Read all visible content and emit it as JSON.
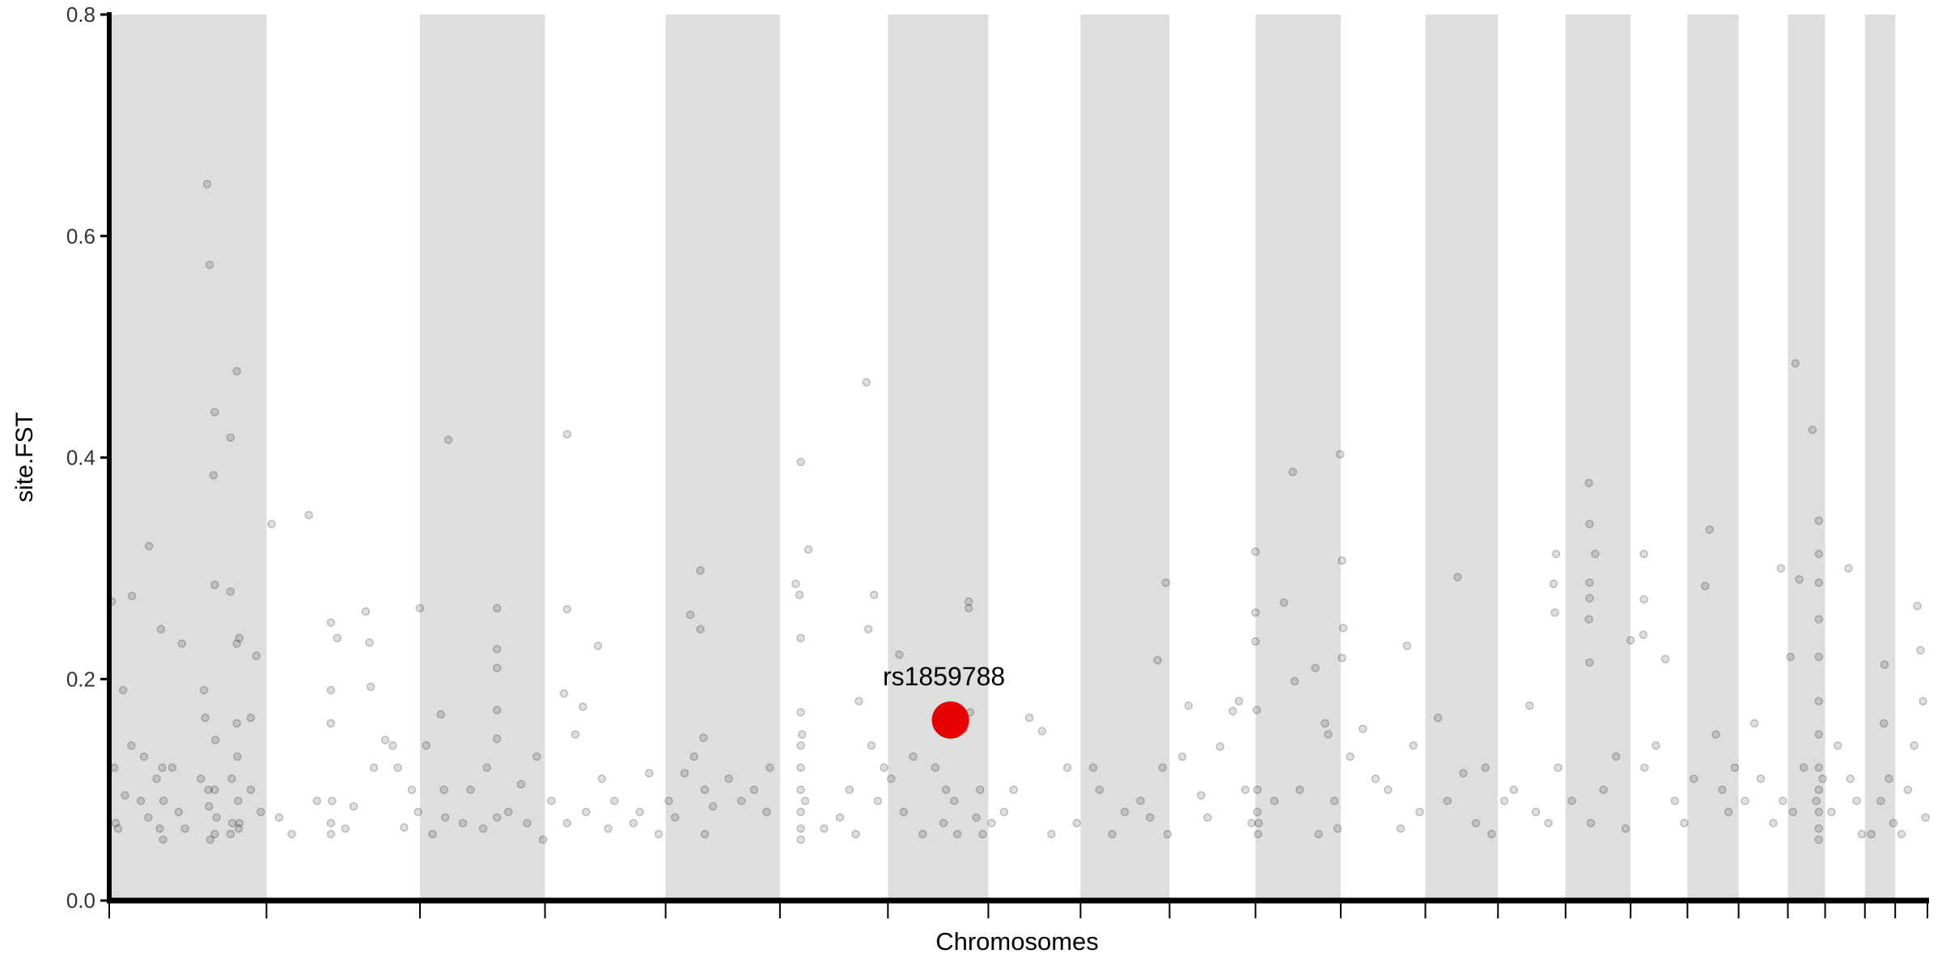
{
  "chart_data": {
    "type": "scatter",
    "subtype": "manhattan",
    "title": "",
    "xlabel": "Chromosomes",
    "ylabel": "site.FST",
    "ylim": [
      0,
      0.8
    ],
    "yticks": [
      "0.0",
      "0.2",
      "0.4",
      "0.6",
      "0.8"
    ],
    "x_tick_labels_shown": false,
    "grid": false,
    "band_color": "#dedede",
    "point_color": "#000000",
    "highlight_color": "#e60000",
    "chromosomes": [
      {
        "chr": 1,
        "length_mb": 249
      },
      {
        "chr": 2,
        "length_mb": 243
      },
      {
        "chr": 3,
        "length_mb": 198
      },
      {
        "chr": 4,
        "length_mb": 191
      },
      {
        "chr": 5,
        "length_mb": 181
      },
      {
        "chr": 6,
        "length_mb": 171
      },
      {
        "chr": 7,
        "length_mb": 159
      },
      {
        "chr": 8,
        "length_mb": 146
      },
      {
        "chr": 9,
        "length_mb": 141
      },
      {
        "chr": 10,
        "length_mb": 136
      },
      {
        "chr": 11,
        "length_mb": 135
      },
      {
        "chr": 12,
        "length_mb": 134
      },
      {
        "chr": 13,
        "length_mb": 115
      },
      {
        "chr": 14,
        "length_mb": 107
      },
      {
        "chr": 15,
        "length_mb": 103
      },
      {
        "chr": 16,
        "length_mb": 90
      },
      {
        "chr": 17,
        "length_mb": 81
      },
      {
        "chr": 18,
        "length_mb": 78
      },
      {
        "chr": 19,
        "length_mb": 59
      },
      {
        "chr": 20,
        "length_mb": 63
      },
      {
        "chr": 21,
        "length_mb": 48
      },
      {
        "chr": 22,
        "length_mb": 51
      }
    ],
    "highlight": {
      "label": "rs1859788",
      "chr": 7,
      "pos_mb": 99,
      "fst": 0.163
    },
    "points_fields": [
      "chr",
      "pos_mb",
      "fst"
    ],
    "points": [
      [
        1,
        4,
        0.27
      ],
      [
        1,
        8,
        0.12
      ],
      [
        1,
        10,
        0.07
      ],
      [
        1,
        14,
        0.065
      ],
      [
        1,
        22,
        0.19
      ],
      [
        1,
        25,
        0.095
      ],
      [
        1,
        35,
        0.14
      ],
      [
        1,
        36,
        0.275
      ],
      [
        1,
        50,
        0.09
      ],
      [
        1,
        55,
        0.13
      ],
      [
        1,
        63,
        0.32
      ],
      [
        1,
        62,
        0.075
      ],
      [
        1,
        75,
        0.11
      ],
      [
        1,
        80,
        0.065
      ],
      [
        1,
        82,
        0.245
      ],
      [
        1,
        85,
        0.055
      ],
      [
        1,
        86,
        0.09
      ],
      [
        1,
        84,
        0.12
      ],
      [
        1,
        100,
        0.12
      ],
      [
        1,
        110,
        0.08
      ],
      [
        1,
        115,
        0.232
      ],
      [
        1,
        120,
        0.065
      ],
      [
        1,
        145,
        0.11
      ],
      [
        1,
        150,
        0.19
      ],
      [
        1,
        152,
        0.165
      ],
      [
        1,
        155,
        0.647
      ],
      [
        1,
        157,
        0.1
      ],
      [
        1,
        158,
        0.085
      ],
      [
        1,
        159,
        0.574
      ],
      [
        1,
        165,
        0.384
      ],
      [
        1,
        167,
        0.441
      ],
      [
        1,
        167,
        0.285
      ],
      [
        1,
        167,
        0.06
      ],
      [
        1,
        167,
        0.1
      ],
      [
        1,
        168,
        0.145
      ],
      [
        1,
        170,
        0.075
      ],
      [
        1,
        160,
        0.055
      ],
      [
        1,
        192,
        0.418
      ],
      [
        1,
        192,
        0.279
      ],
      [
        1,
        192,
        0.06
      ],
      [
        1,
        194,
        0.11
      ],
      [
        1,
        195,
        0.07
      ],
      [
        1,
        202,
        0.478
      ],
      [
        1,
        202,
        0.232
      ],
      [
        1,
        202,
        0.16
      ],
      [
        1,
        203,
        0.13
      ],
      [
        1,
        204,
        0.09
      ],
      [
        1,
        205,
        0.065
      ],
      [
        1,
        206,
        0.237
      ],
      [
        1,
        206,
        0.07
      ],
      [
        1,
        224,
        0.165
      ],
      [
        1,
        224,
        0.1
      ],
      [
        1,
        233,
        0.221
      ],
      [
        1,
        240,
        0.08
      ],
      [
        2,
        8,
        0.34
      ],
      [
        2,
        20,
        0.075
      ],
      [
        2,
        40,
        0.06
      ],
      [
        2,
        67,
        0.348
      ],
      [
        2,
        80,
        0.09
      ],
      [
        2,
        102,
        0.251
      ],
      [
        2,
        102,
        0.19
      ],
      [
        2,
        102,
        0.16
      ],
      [
        2,
        102,
        0.07
      ],
      [
        2,
        102,
        0.06
      ],
      [
        2,
        104,
        0.09
      ],
      [
        2,
        112,
        0.237
      ],
      [
        2,
        125,
        0.065
      ],
      [
        2,
        138,
        0.085
      ],
      [
        2,
        157,
        0.261
      ],
      [
        2,
        163,
        0.233
      ],
      [
        2,
        165,
        0.193
      ],
      [
        2,
        170,
        0.12
      ],
      [
        2,
        188,
        0.145
      ],
      [
        2,
        200,
        0.14
      ],
      [
        2,
        208,
        0.12
      ],
      [
        2,
        218,
        0.066
      ],
      [
        2,
        230,
        0.1
      ],
      [
        2,
        240,
        0.08
      ],
      [
        3,
        0,
        0.264
      ],
      [
        3,
        10,
        0.14
      ],
      [
        3,
        20,
        0.06
      ],
      [
        3,
        33,
        0.168
      ],
      [
        3,
        38,
        0.1
      ],
      [
        3,
        45,
        0.416
      ],
      [
        3,
        40,
        0.075
      ],
      [
        3,
        68,
        0.07
      ],
      [
        3,
        80,
        0.1
      ],
      [
        3,
        100,
        0.065
      ],
      [
        3,
        106,
        0.12
      ],
      [
        3,
        122,
        0.264
      ],
      [
        3,
        122,
        0.227
      ],
      [
        3,
        122,
        0.21
      ],
      [
        3,
        122,
        0.172
      ],
      [
        3,
        122,
        0.146
      ],
      [
        3,
        122,
        0.075
      ],
      [
        3,
        140,
        0.08
      ],
      [
        3,
        160,
        0.105
      ],
      [
        3,
        170,
        0.07
      ],
      [
        3,
        185,
        0.13
      ],
      [
        3,
        195,
        0.055
      ],
      [
        4,
        10,
        0.09
      ],
      [
        4,
        30,
        0.187
      ],
      [
        4,
        35,
        0.421
      ],
      [
        4,
        35,
        0.263
      ],
      [
        4,
        35,
        0.07
      ],
      [
        4,
        48,
        0.15
      ],
      [
        4,
        60,
        0.175
      ],
      [
        4,
        65,
        0.08
      ],
      [
        4,
        84,
        0.23
      ],
      [
        4,
        90,
        0.11
      ],
      [
        4,
        100,
        0.065
      ],
      [
        4,
        110,
        0.09
      ],
      [
        4,
        140,
        0.07
      ],
      [
        4,
        150,
        0.08
      ],
      [
        4,
        165,
        0.115
      ],
      [
        4,
        180,
        0.06
      ],
      [
        5,
        5,
        0.09
      ],
      [
        5,
        15,
        0.075
      ],
      [
        5,
        30,
        0.115
      ],
      [
        5,
        39,
        0.258
      ],
      [
        5,
        45,
        0.13
      ],
      [
        5,
        55,
        0.298
      ],
      [
        5,
        55,
        0.245
      ],
      [
        5,
        60,
        0.147
      ],
      [
        5,
        62,
        0.1
      ],
      [
        5,
        62,
        0.06
      ],
      [
        5,
        75,
        0.085
      ],
      [
        5,
        100,
        0.11
      ],
      [
        5,
        120,
        0.09
      ],
      [
        5,
        140,
        0.1
      ],
      [
        5,
        160,
        0.08
      ],
      [
        5,
        165,
        0.12
      ],
      [
        6,
        25,
        0.286
      ],
      [
        6,
        31,
        0.276
      ],
      [
        6,
        33,
        0.396
      ],
      [
        6,
        33,
        0.237
      ],
      [
        6,
        33,
        0.17
      ],
      [
        6,
        33,
        0.14
      ],
      [
        6,
        33,
        0.12
      ],
      [
        6,
        33,
        0.1
      ],
      [
        6,
        33,
        0.08
      ],
      [
        6,
        33,
        0.065
      ],
      [
        6,
        33,
        0.055
      ],
      [
        6,
        35,
        0.15
      ],
      [
        6,
        45,
        0.317
      ],
      [
        6,
        40,
        0.09
      ],
      [
        6,
        70,
        0.065
      ],
      [
        6,
        95,
        0.075
      ],
      [
        6,
        110,
        0.1
      ],
      [
        6,
        120,
        0.06
      ],
      [
        6,
        125,
        0.18
      ],
      [
        6,
        137,
        0.468
      ],
      [
        6,
        140,
        0.245
      ],
      [
        6,
        149,
        0.276
      ],
      [
        6,
        145,
        0.14
      ],
      [
        6,
        155,
        0.09
      ],
      [
        6,
        165,
        0.12
      ],
      [
        7,
        5,
        0.11
      ],
      [
        7,
        18,
        0.222
      ],
      [
        7,
        25,
        0.08
      ],
      [
        7,
        40,
        0.13
      ],
      [
        7,
        55,
        0.06
      ],
      [
        7,
        75,
        0.12
      ],
      [
        7,
        88,
        0.07
      ],
      [
        7,
        92,
        0.1
      ],
      [
        7,
        105,
        0.09
      ],
      [
        7,
        110,
        0.06
      ],
      [
        7,
        120,
        0.155
      ],
      [
        7,
        128,
        0.264
      ],
      [
        7,
        128,
        0.27
      ],
      [
        7,
        130,
        0.17
      ],
      [
        7,
        140,
        0.075
      ],
      [
        7,
        146,
        0.1
      ],
      [
        7,
        150,
        0.06
      ],
      [
        8,
        5,
        0.07
      ],
      [
        8,
        25,
        0.08
      ],
      [
        8,
        40,
        0.1
      ],
      [
        8,
        65,
        0.165
      ],
      [
        8,
        85,
        0.153
      ],
      [
        8,
        100,
        0.06
      ],
      [
        8,
        125,
        0.12
      ],
      [
        8,
        140,
        0.07
      ],
      [
        9,
        20,
        0.12
      ],
      [
        9,
        30,
        0.1
      ],
      [
        9,
        50,
        0.06
      ],
      [
        9,
        70,
        0.08
      ],
      [
        9,
        95,
        0.09
      ],
      [
        9,
        110,
        0.075
      ],
      [
        9,
        122,
        0.217
      ],
      [
        9,
        130,
        0.12
      ],
      [
        9,
        135,
        0.287
      ],
      [
        9,
        138,
        0.06
      ],
      [
        10,
        20,
        0.13
      ],
      [
        10,
        30,
        0.176
      ],
      [
        10,
        50,
        0.095
      ],
      [
        10,
        60,
        0.075
      ],
      [
        10,
        80,
        0.139
      ],
      [
        10,
        100,
        0.171
      ],
      [
        10,
        110,
        0.18
      ],
      [
        10,
        120,
        0.1
      ],
      [
        10,
        130,
        0.07
      ],
      [
        11,
        0,
        0.315
      ],
      [
        11,
        0,
        0.26
      ],
      [
        11,
        0,
        0.234
      ],
      [
        11,
        2,
        0.172
      ],
      [
        11,
        3,
        0.1
      ],
      [
        11,
        3,
        0.08
      ],
      [
        11,
        4,
        0.06
      ],
      [
        11,
        5,
        0.07
      ],
      [
        11,
        30,
        0.09
      ],
      [
        11,
        45,
        0.269
      ],
      [
        11,
        59,
        0.387
      ],
      [
        11,
        62,
        0.198
      ],
      [
        11,
        70,
        0.1
      ],
      [
        11,
        95,
        0.21
      ],
      [
        11,
        100,
        0.06
      ],
      [
        11,
        110,
        0.16
      ],
      [
        11,
        115,
        0.15
      ],
      [
        11,
        125,
        0.09
      ],
      [
        11,
        134,
        0.403
      ],
      [
        11,
        130,
        0.065
      ],
      [
        12,
        2,
        0.307
      ],
      [
        12,
        4,
        0.246
      ],
      [
        12,
        2,
        0.219
      ],
      [
        12,
        15,
        0.13
      ],
      [
        12,
        35,
        0.155
      ],
      [
        12,
        55,
        0.11
      ],
      [
        12,
        75,
        0.1
      ],
      [
        12,
        95,
        0.065
      ],
      [
        12,
        105,
        0.23
      ],
      [
        12,
        115,
        0.14
      ],
      [
        12,
        125,
        0.08
      ],
      [
        13,
        20,
        0.165
      ],
      [
        13,
        35,
        0.09
      ],
      [
        13,
        51,
        0.292
      ],
      [
        13,
        60,
        0.115
      ],
      [
        13,
        80,
        0.07
      ],
      [
        13,
        95,
        0.12
      ],
      [
        13,
        105,
        0.06
      ],
      [
        14,
        10,
        0.09
      ],
      [
        14,
        25,
        0.1
      ],
      [
        14,
        50,
        0.176
      ],
      [
        14,
        60,
        0.08
      ],
      [
        14,
        80,
        0.07
      ],
      [
        14,
        88,
        0.286
      ],
      [
        14,
        90,
        0.26
      ],
      [
        14,
        92,
        0.313
      ],
      [
        14,
        95,
        0.12
      ],
      [
        15,
        10,
        0.09
      ],
      [
        15,
        37,
        0.377
      ],
      [
        15,
        38,
        0.34
      ],
      [
        15,
        38,
        0.287
      ],
      [
        15,
        38,
        0.273
      ],
      [
        15,
        37,
        0.254
      ],
      [
        15,
        38,
        0.215
      ],
      [
        15,
        40,
        0.07
      ],
      [
        15,
        47,
        0.313
      ],
      [
        15,
        60,
        0.1
      ],
      [
        15,
        80,
        0.13
      ],
      [
        15,
        95,
        0.065
      ],
      [
        16,
        0,
        0.235
      ],
      [
        16,
        20,
        0.24
      ],
      [
        16,
        21,
        0.313
      ],
      [
        16,
        21,
        0.272
      ],
      [
        16,
        22,
        0.12
      ],
      [
        16,
        40,
        0.14
      ],
      [
        16,
        55,
        0.218
      ],
      [
        16,
        70,
        0.09
      ],
      [
        16,
        85,
        0.07
      ],
      [
        17,
        10,
        0.11
      ],
      [
        17,
        28,
        0.284
      ],
      [
        17,
        35,
        0.335
      ],
      [
        17,
        45,
        0.15
      ],
      [
        17,
        55,
        0.1
      ],
      [
        17,
        65,
        0.08
      ],
      [
        17,
        75,
        0.12
      ],
      [
        18,
        10,
        0.09
      ],
      [
        18,
        25,
        0.16
      ],
      [
        18,
        35,
        0.11
      ],
      [
        18,
        55,
        0.07
      ],
      [
        18,
        67,
        0.3
      ],
      [
        18,
        70,
        0.09
      ],
      [
        19,
        4,
        0.22
      ],
      [
        19,
        8,
        0.08
      ],
      [
        19,
        12,
        0.485
      ],
      [
        19,
        18,
        0.29
      ],
      [
        19,
        25,
        0.12
      ],
      [
        19,
        39,
        0.425
      ],
      [
        19,
        49,
        0.343
      ],
      [
        19,
        49,
        0.313
      ],
      [
        19,
        49,
        0.287
      ],
      [
        19,
        49,
        0.254
      ],
      [
        19,
        49,
        0.22
      ],
      [
        19,
        49,
        0.18
      ],
      [
        19,
        49,
        0.15
      ],
      [
        19,
        49,
        0.12
      ],
      [
        19,
        49,
        0.1
      ],
      [
        19,
        49,
        0.08
      ],
      [
        19,
        49,
        0.065
      ],
      [
        19,
        49,
        0.055
      ],
      [
        19,
        45,
        0.09
      ],
      [
        19,
        55,
        0.11
      ],
      [
        20,
        10,
        0.08
      ],
      [
        20,
        20,
        0.14
      ],
      [
        20,
        37,
        0.3
      ],
      [
        20,
        40,
        0.11
      ],
      [
        20,
        50,
        0.09
      ],
      [
        20,
        58,
        0.06
      ],
      [
        21,
        10,
        0.06
      ],
      [
        21,
        25,
        0.09
      ],
      [
        21,
        31,
        0.213
      ],
      [
        21,
        30,
        0.16
      ],
      [
        21,
        38,
        0.11
      ],
      [
        21,
        45,
        0.07
      ],
      [
        22,
        10,
        0.06
      ],
      [
        22,
        20,
        0.1
      ],
      [
        22,
        30,
        0.14
      ],
      [
        22,
        35,
        0.266
      ],
      [
        22,
        40,
        0.226
      ],
      [
        22,
        44,
        0.18
      ],
      [
        22,
        48,
        0.075
      ]
    ]
  }
}
